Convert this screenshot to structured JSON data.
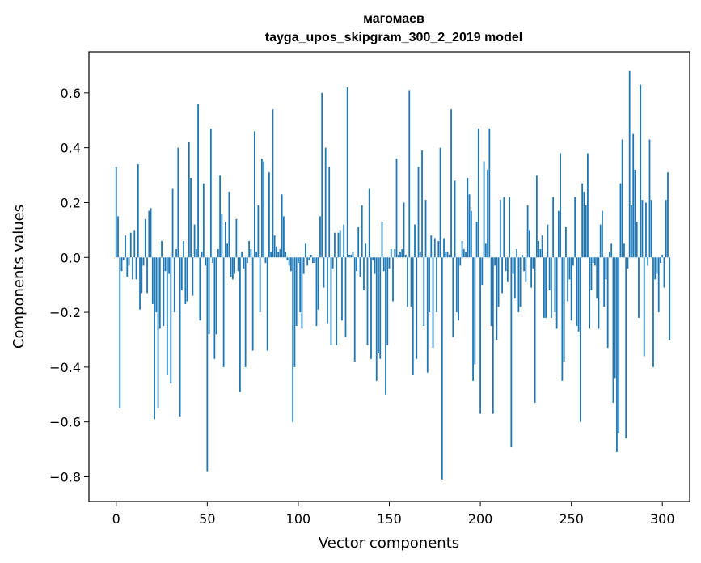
{
  "chart_data": {
    "type": "bar",
    "title": "магомаев",
    "subtitle": "tayga_upos_skipgram_300_2_2019 model",
    "xlabel": "Vector components",
    "ylabel": "Components values",
    "xlim": [
      -15,
      315
    ],
    "ylim": [
      -0.89,
      0.75
    ],
    "xticks": [
      0,
      50,
      100,
      150,
      200,
      250,
      300
    ],
    "yticks": [
      -0.8,
      -0.6,
      -0.4,
      -0.2,
      0.0,
      0.2,
      0.4,
      0.6
    ],
    "ytick_labels": [
      "−0.8",
      "−0.6",
      "−0.4",
      "−0.2",
      "0.0",
      "0.2",
      "0.4",
      "0.6"
    ],
    "bar_color": "#1f77b4",
    "values": [
      0.33,
      0.15,
      -0.55,
      -0.05,
      -0.01,
      0.08,
      -0.07,
      -0.03,
      0.09,
      -0.08,
      0.1,
      -0.08,
      0.34,
      -0.19,
      -0.13,
      -0.03,
      0.14,
      -0.13,
      0.17,
      0.18,
      -0.17,
      -0.59,
      -0.2,
      -0.55,
      -0.26,
      0.06,
      -0.25,
      -0.05,
      -0.43,
      -0.06,
      -0.46,
      0.25,
      -0.2,
      0.03,
      0.4,
      -0.58,
      -0.12,
      0.06,
      -0.17,
      -0.16,
      0.42,
      0.29,
      -0.14,
      0.12,
      0.03,
      0.56,
      -0.23,
      0.02,
      0.27,
      -0.03,
      -0.78,
      -0.28,
      0.47,
      -0.02,
      -0.37,
      -0.28,
      0.03,
      0.3,
      0.16,
      -0.4,
      0.13,
      0.05,
      0.24,
      -0.07,
      -0.08,
      -0.06,
      0.14,
      -0.05,
      -0.49,
      0.02,
      -0.04,
      -0.4,
      -0.02,
      0.06,
      0.03,
      -0.34,
      0.46,
      0.02,
      0.19,
      -0.2,
      0.36,
      0.35,
      -0.02,
      -0.34,
      0.31,
      0.02,
      0.54,
      0.08,
      0.04,
      0.02,
      0.03,
      0.23,
      0.15,
      0.02,
      -0.01,
      -0.03,
      -0.05,
      -0.6,
      -0.4,
      -0.25,
      -0.02,
      -0.2,
      -0.26,
      -0.06,
      0.05,
      -0.03,
      -0.01,
      0.01,
      -0.02,
      -0.02,
      -0.25,
      -0.19,
      0.15,
      0.6,
      -0.11,
      0.4,
      -0.24,
      0.33,
      -0.32,
      -0.04,
      0.09,
      -0.32,
      0.09,
      0.1,
      -0.23,
      0.12,
      -0.29,
      0.62,
      0.01,
      0.01,
      0.02,
      -0.38,
      -0.05,
      0.11,
      -0.07,
      0.19,
      -0.12,
      0.05,
      -0.32,
      0.25,
      -0.37,
      -0.01,
      -0.06,
      -0.45,
      -0.35,
      -0.37,
      0.13,
      -0.05,
      -0.5,
      -0.32,
      -0.04,
      0.03,
      -0.16,
      0.03,
      0.36,
      0.01,
      0.02,
      0.03,
      0.2,
      0.01,
      -0.18,
      0.61,
      -0.18,
      -0.43,
      0.12,
      -0.37,
      0.33,
      0.02,
      0.39,
      -0.25,
      0.21,
      -0.42,
      -0.2,
      0.08,
      -0.33,
      0.07,
      -0.2,
      0.06,
      0.4,
      -0.81,
      0.07,
      0.02,
      0.02,
      0.01,
      0.54,
      -0.29,
      0.28,
      -0.2,
      -0.23,
      -0.03,
      0.06,
      0.03,
      0.02,
      0.29,
      0.23,
      0.17,
      -0.45,
      -0.39,
      0.13,
      0.47,
      -0.57,
      -0.1,
      0.35,
      0.05,
      0.32,
      0.47,
      -0.25,
      -0.57,
      -0.03,
      -0.3,
      -0.18,
      0.21,
      -0.13,
      0.22,
      -0.05,
      -0.09,
      0.22,
      -0.69,
      -0.06,
      -0.15,
      0.03,
      -0.2,
      -0.18,
      0.01,
      -0.05,
      -0.09,
      0.19,
      0.1,
      -0.11,
      -0.04,
      -0.53,
      0.3,
      0.06,
      0.03,
      0.08,
      -0.22,
      -0.22,
      0.12,
      -0.12,
      -0.22,
      0.22,
      -0.2,
      -0.26,
      0.17,
      0.38,
      -0.45,
      -0.38,
      0.11,
      -0.16,
      -0.08,
      -0.23,
      -0.03,
      0.22,
      -0.25,
      -0.27,
      -0.6,
      0.27,
      0.24,
      0.19,
      0.38,
      -0.26,
      -0.12,
      -0.02,
      -0.03,
      -0.15,
      -0.26,
      0.12,
      0.17,
      -0.18,
      -0.08,
      -0.33,
      0.02,
      0.05,
      -0.53,
      -0.44,
      -0.71,
      -0.64,
      0.27,
      0.43,
      0.05,
      -0.66,
      -0.04,
      0.68,
      0.19,
      0.45,
      0.32,
      0.13,
      -0.22,
      0.63,
      0.21,
      -0.36,
      0.2,
      -0.03,
      0.43,
      0.21,
      -0.4,
      -0.08,
      -0.06,
      -0.2,
      -0.02,
      0.01,
      -0.11,
      0.21,
      0.31,
      -0.3
    ]
  }
}
